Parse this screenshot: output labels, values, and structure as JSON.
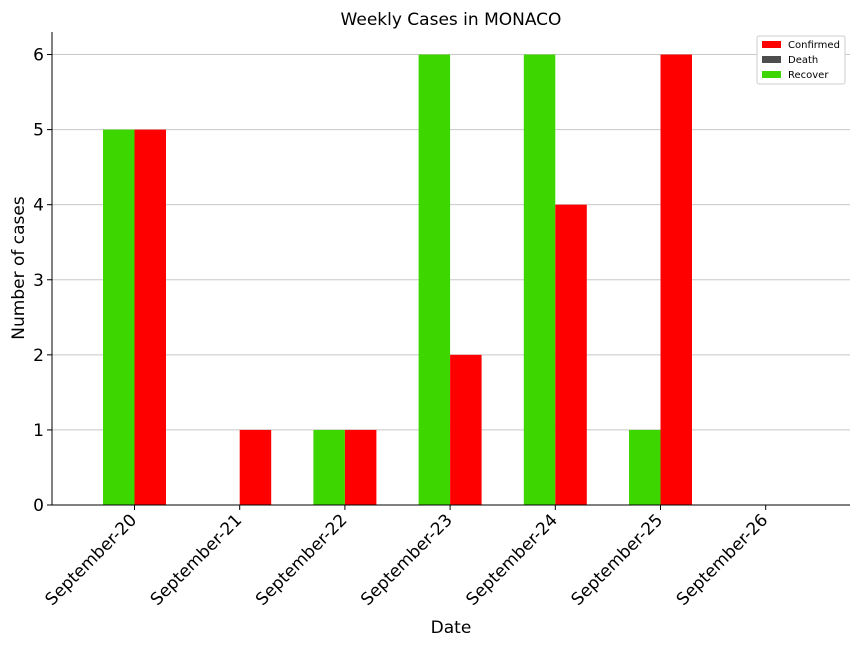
{
  "chart_data": {
    "type": "bar",
    "title": "Weekly Cases in MONACO",
    "xlabel": "Date",
    "ylabel": "Number of cases",
    "categories": [
      "September-20",
      "September-21",
      "September-22",
      "September-23",
      "September-24",
      "September-25",
      "September-26"
    ],
    "series": [
      {
        "name": "Recover",
        "color": "#3ed600",
        "values": [
          5,
          0,
          1,
          6,
          6,
          1,
          0
        ]
      },
      {
        "name": "Confirmed",
        "color": "#ff0000",
        "values": [
          5,
          1,
          1,
          2,
          4,
          6,
          0
        ]
      },
      {
        "name": "Death",
        "color": "#4d4d4d",
        "values": [
          0,
          0,
          0,
          0,
          0,
          0,
          0
        ]
      }
    ],
    "legend_order": [
      "Confirmed",
      "Death",
      "Recover"
    ],
    "ylim": [
      0,
      6.3
    ],
    "yticks": [
      0,
      1,
      2,
      3,
      4,
      5,
      6
    ],
    "grid": "horizontal",
    "legend_position": "top-right"
  }
}
